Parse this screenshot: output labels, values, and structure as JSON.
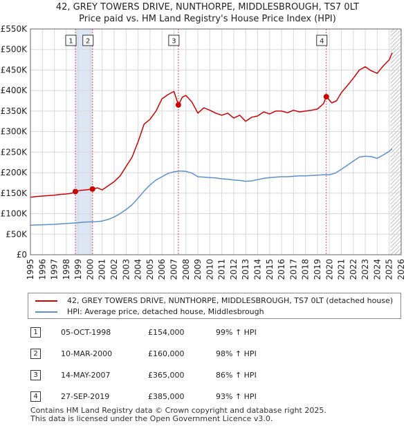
{
  "title_line1": "42, GREY TOWERS DRIVE, NUNTHORPE, MIDDLESBROUGH, TS7 0LT",
  "title_line2": "Price paid vs. HM Land Registry's House Price Index (HPI)",
  "colors": {
    "property": "#cc0000",
    "hpi": "#5b8fcf",
    "shade": "#dde6f4",
    "grid": "#d8d8d8",
    "marker_line": "#dd4444"
  },
  "chart_data": {
    "type": "line",
    "xlim": [
      1995,
      2026
    ],
    "ylim": [
      0,
      550000
    ],
    "x_ticks": [
      1995,
      1996,
      1997,
      1998,
      1999,
      2000,
      2001,
      2002,
      2003,
      2004,
      2005,
      2006,
      2007,
      2008,
      2009,
      2010,
      2011,
      2012,
      2013,
      2014,
      2015,
      2016,
      2017,
      2018,
      2019,
      2020,
      2021,
      2022,
      2023,
      2024,
      2025,
      2026
    ],
    "y_ticks": [
      {
        "value": 0,
        "label": "£0"
      },
      {
        "value": 50000,
        "label": "£50K"
      },
      {
        "value": 100000,
        "label": "£100K"
      },
      {
        "value": 150000,
        "label": "£150K"
      },
      {
        "value": 200000,
        "label": "£200K"
      },
      {
        "value": 250000,
        "label": "£250K"
      },
      {
        "value": 300000,
        "label": "£300K"
      },
      {
        "value": 350000,
        "label": "£350K"
      },
      {
        "value": 400000,
        "label": "£400K"
      },
      {
        "value": 450000,
        "label": "£450K"
      },
      {
        "value": 500000,
        "label": "£500K"
      },
      {
        "value": 550000,
        "label": "£550K"
      }
    ],
    "shaded_spans": [
      [
        1998.76,
        2000.19
      ]
    ],
    "hatched_from": 2025.1,
    "series": [
      {
        "name": "42, GREY TOWERS DRIVE, NUNTHORPE, MIDDLESBROUGH, TS7 0LT (detached house)",
        "color": "#cc0000",
        "x": [
          1995,
          1995.5,
          1996,
          1996.5,
          1997,
          1997.5,
          1998,
          1998.5,
          1998.76,
          1999.2,
          1999.6,
          2000.19,
          2000.6,
          2001,
          2001.5,
          2002,
          2002.5,
          2003,
          2003.5,
          2004,
          2004.5,
          2005,
          2005.5,
          2006,
          2006.5,
          2007,
          2007.37,
          2007.7,
          2008,
          2008.5,
          2009,
          2009.5,
          2010,
          2010.5,
          2011,
          2011.5,
          2012,
          2012.5,
          2013,
          2013.5,
          2014,
          2014.5,
          2015,
          2015.5,
          2016,
          2016.5,
          2017,
          2017.5,
          2018,
          2018.5,
          2019,
          2019.5,
          2019.74,
          2020.2,
          2020.6,
          2021,
          2021.5,
          2022,
          2022.5,
          2023,
          2023.5,
          2024,
          2024.5,
          2025,
          2025.25
        ],
        "y": [
          140000,
          142000,
          143000,
          144000,
          145000,
          147000,
          148000,
          150000,
          154000,
          157000,
          158000,
          160000,
          163000,
          158000,
          168000,
          178000,
          192000,
          215000,
          238000,
          275000,
          318000,
          330000,
          350000,
          380000,
          390000,
          398000,
          365000,
          384000,
          388000,
          372000,
          345000,
          358000,
          352000,
          345000,
          340000,
          345000,
          333000,
          340000,
          325000,
          335000,
          338000,
          348000,
          343000,
          350000,
          350000,
          346000,
          352000,
          348000,
          350000,
          352000,
          355000,
          368000,
          385000,
          370000,
          375000,
          395000,
          412000,
          430000,
          450000,
          458000,
          448000,
          442000,
          460000,
          475000,
          492000
        ]
      },
      {
        "name": "HPI: Average price, detached house, Middlesbrough",
        "color": "#5b8fcf",
        "x": [
          1995,
          1995.5,
          1996,
          1996.5,
          1997,
          1997.5,
          1998,
          1998.5,
          1999,
          1999.5,
          2000,
          2000.5,
          2001,
          2001.5,
          2002,
          2002.5,
          2003,
          2003.5,
          2004,
          2004.5,
          2005,
          2005.5,
          2006,
          2006.5,
          2007,
          2007.5,
          2008,
          2008.5,
          2009,
          2009.5,
          2010,
          2010.5,
          2011,
          2011.5,
          2012,
          2012.5,
          2013,
          2013.5,
          2014,
          2014.5,
          2015,
          2015.5,
          2016,
          2016.5,
          2017,
          2017.5,
          2018,
          2018.5,
          2019,
          2019.5,
          2020,
          2020.5,
          2021,
          2021.5,
          2022,
          2022.5,
          2023,
          2023.5,
          2024,
          2024.5,
          2025,
          2025.25
        ],
        "y": [
          72000,
          72500,
          73000,
          73500,
          74000,
          75000,
          76000,
          77000,
          78000,
          79500,
          80000,
          80500,
          82000,
          86000,
          92000,
          100000,
          110000,
          122000,
          138000,
          155000,
          170000,
          182000,
          190000,
          198000,
          202000,
          204000,
          203000,
          199000,
          190000,
          189000,
          188000,
          187000,
          185000,
          184000,
          182000,
          181000,
          179000,
          180000,
          183000,
          186000,
          188000,
          189000,
          190000,
          190000,
          191000,
          192000,
          192000,
          193000,
          194000,
          195000,
          195000,
          199000,
          208000,
          218000,
          228000,
          238000,
          240000,
          239000,
          235000,
          243000,
          252000,
          258000
        ]
      }
    ],
    "sale_points": [
      {
        "id": "1",
        "x": 1998.76,
        "y": 154000
      },
      {
        "id": "2",
        "x": 2000.19,
        "y": 160000
      },
      {
        "id": "3",
        "x": 2007.37,
        "y": 365000
      },
      {
        "id": "4",
        "x": 2019.74,
        "y": 385000
      }
    ]
  },
  "legend": {
    "property": "42, GREY TOWERS DRIVE, NUNTHORPE, MIDDLESBROUGH, TS7 0LT (detached house)",
    "hpi": "HPI: Average price, detached house, Middlesbrough"
  },
  "sales": [
    {
      "id": "1",
      "date": "05-OCT-1998",
      "price": "£154,000",
      "hpi": "99% ↑ HPI"
    },
    {
      "id": "2",
      "date": "10-MAR-2000",
      "price": "£160,000",
      "hpi": "98% ↑ HPI"
    },
    {
      "id": "3",
      "date": "14-MAY-2007",
      "price": "£365,000",
      "hpi": "86% ↑ HPI"
    },
    {
      "id": "4",
      "date": "27-SEP-2019",
      "price": "£385,000",
      "hpi": "93% ↑ HPI"
    }
  ],
  "footer": {
    "line1": "Contains HM Land Registry data © Crown copyright and database right 2025.",
    "line2": "This data is licensed under the Open Government Licence v3.0."
  }
}
